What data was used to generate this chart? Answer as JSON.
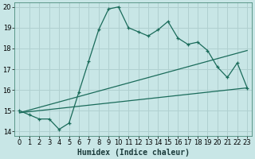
{
  "xlabel": "Humidex (Indice chaleur)",
  "background_color": "#c8e6e6",
  "grid_color": "#b0d0d0",
  "line_color": "#1a6b5a",
  "xlim": [
    -0.5,
    23.5
  ],
  "ylim": [
    13.8,
    20.2
  ],
  "xticks": [
    0,
    1,
    2,
    3,
    4,
    5,
    6,
    7,
    8,
    9,
    10,
    11,
    12,
    13,
    14,
    15,
    16,
    17,
    18,
    19,
    20,
    21,
    22,
    23
  ],
  "yticks": [
    14,
    15,
    16,
    17,
    18,
    19,
    20
  ],
  "series1_x": [
    0,
    1,
    2,
    3,
    4,
    5,
    6,
    7,
    8,
    9,
    10,
    11,
    12,
    13,
    14,
    15,
    16,
    17,
    18,
    19,
    20,
    21,
    22,
    23
  ],
  "series1_y": [
    15.0,
    14.8,
    14.6,
    14.6,
    14.1,
    14.4,
    15.9,
    17.4,
    18.9,
    19.9,
    20.0,
    19.0,
    18.8,
    18.6,
    18.9,
    19.3,
    18.5,
    18.2,
    18.3,
    17.9,
    17.1,
    16.6,
    17.3,
    16.1
  ],
  "series2_x": [
    0,
    23
  ],
  "series2_y": [
    14.9,
    16.1
  ],
  "series3_x": [
    0,
    23
  ],
  "series3_y": [
    14.9,
    17.9
  ],
  "marker_size": 3.5,
  "line_width": 0.9,
  "xlabel_fontsize": 7,
  "tick_fontsize": 6
}
